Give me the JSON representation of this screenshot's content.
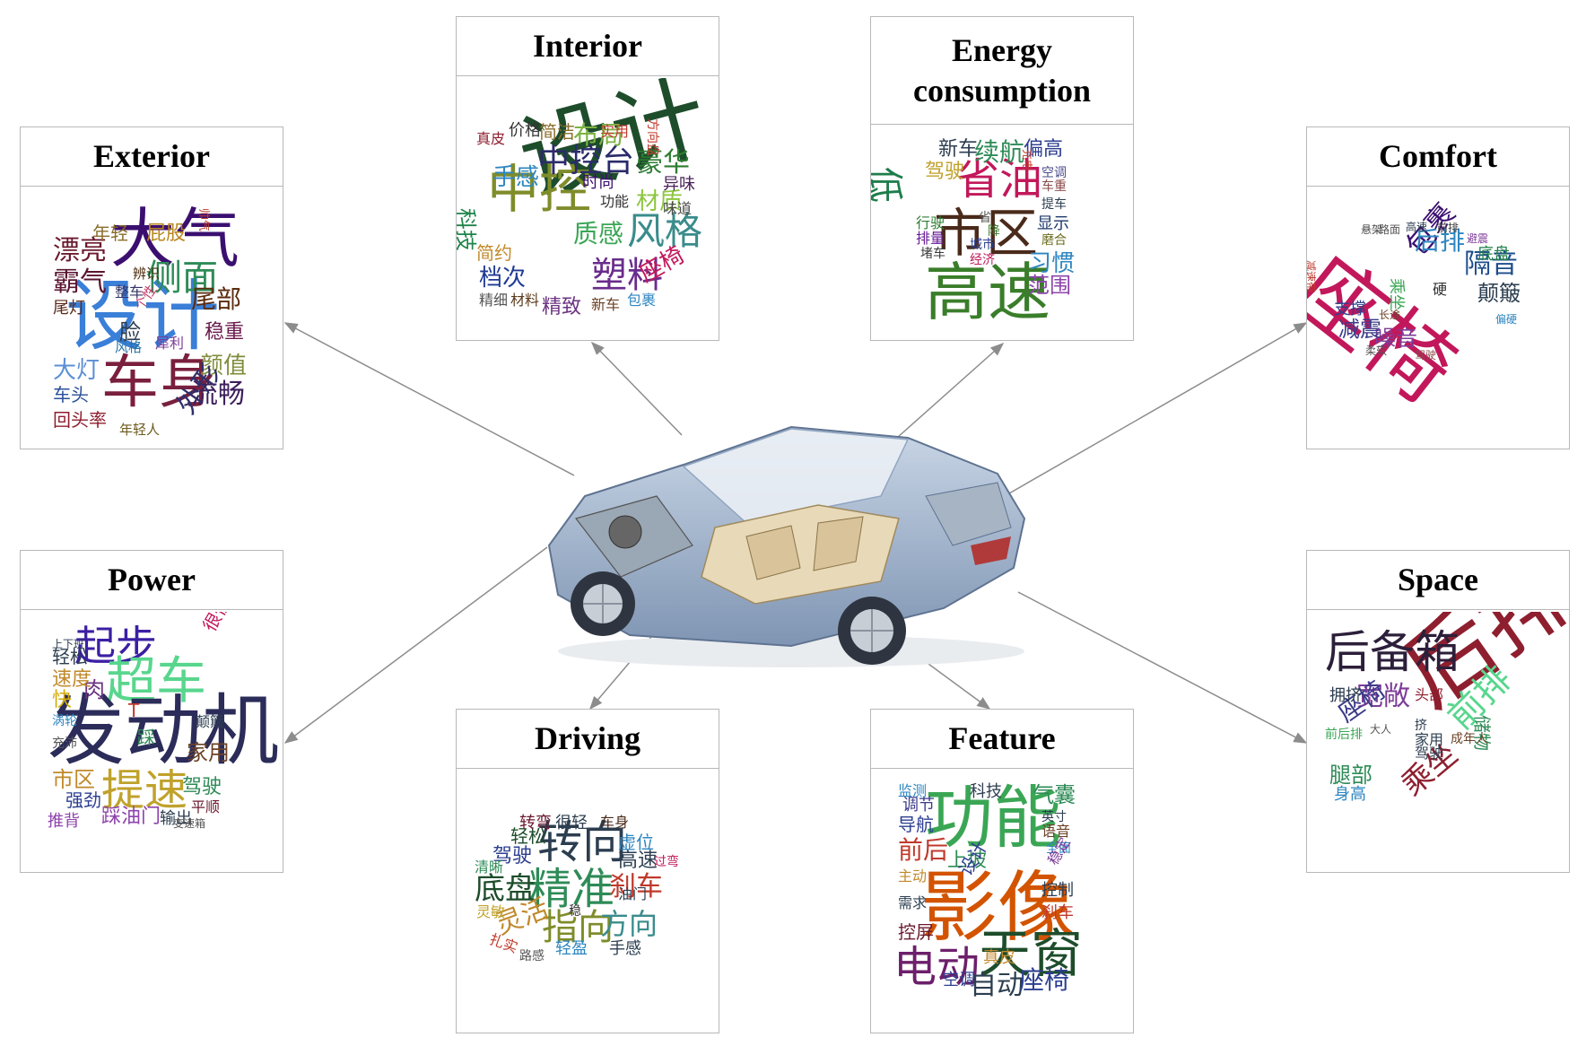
{
  "colors": {
    "arrow": "#8c8c8c",
    "border": "#b8b8b8"
  },
  "center_image": {
    "icon": "car-cutaway-icon"
  },
  "panels": [
    {
      "id": "exterior",
      "title": "Exterior",
      "words": [
        {
          "t": "大气",
          "c": "#3b0f70"
        },
        {
          "t": "设计",
          "c": "#3a7fd8"
        },
        {
          "t": "车身",
          "c": "#7a1f3d"
        },
        {
          "t": "漂亮",
          "c": "#6b1a2e"
        },
        {
          "t": "霸气",
          "c": "#5a1530"
        },
        {
          "t": "年轻",
          "c": "#8a6d2a"
        },
        {
          "t": "屁股",
          "c": "#b8861b"
        },
        {
          "t": "帅气",
          "c": "#c0392b"
        },
        {
          "t": "侧面",
          "c": "#2e8b57"
        },
        {
          "t": "尾部",
          "c": "#5b2c0f"
        },
        {
          "t": "稳重",
          "c": "#6a1b4d"
        },
        {
          "t": "颜值",
          "c": "#7f8c3a"
        },
        {
          "t": "流畅",
          "c": "#3d1f5c"
        },
        {
          "t": "外形",
          "c": "#2f2f6b"
        },
        {
          "t": "大灯",
          "c": "#5b8fd6"
        },
        {
          "t": "车头",
          "c": "#2a4f9a"
        },
        {
          "t": "回头率",
          "c": "#8e1f2f"
        },
        {
          "t": "年轻人",
          "c": "#6d5a1e"
        },
        {
          "t": "尾灯",
          "c": "#5a2a1a"
        },
        {
          "t": "整车",
          "c": "#333366"
        },
        {
          "t": "辨识",
          "c": "#4a2a0a"
        },
        {
          "t": "个性",
          "c": "#c23b6a"
        },
        {
          "t": "脸",
          "c": "#2c3e50"
        },
        {
          "t": "犀利",
          "c": "#7d3c98"
        },
        {
          "t": "风格",
          "c": "#2874a6"
        }
      ]
    },
    {
      "id": "interior",
      "title": "Interior",
      "words": [
        {
          "t": "设计",
          "c": "#1e4d2b"
        },
        {
          "t": "中控",
          "c": "#7f8c2a"
        },
        {
          "t": "中控台",
          "c": "#2b2b6b"
        },
        {
          "t": "风格",
          "c": "#3b8c8c"
        },
        {
          "t": "塑料",
          "c": "#6a2c8c"
        },
        {
          "t": "材质",
          "c": "#8cc63f"
        },
        {
          "t": "豪华",
          "c": "#2e7d32"
        },
        {
          "t": "布局",
          "c": "#7cb342"
        },
        {
          "t": "简洁",
          "c": "#8a6d2a"
        },
        {
          "t": "价格",
          "c": "#333333"
        },
        {
          "t": "真皮",
          "c": "#8e1f2f"
        },
        {
          "t": "实用",
          "c": "#c0392b"
        },
        {
          "t": "方向盘",
          "c": "#c0392b"
        },
        {
          "t": "手感",
          "c": "#2e86c1"
        },
        {
          "t": "时尚",
          "c": "#3b0f70"
        },
        {
          "t": "科技",
          "c": "#1e8449"
        },
        {
          "t": "异味",
          "c": "#4a235a"
        },
        {
          "t": "功能",
          "c": "#333333"
        },
        {
          "t": "味道",
          "c": "#4a4a4a"
        },
        {
          "t": "质感",
          "c": "#3aa655"
        },
        {
          "t": "简约",
          "c": "#c0892b"
        },
        {
          "t": "档次",
          "c": "#1f3a93"
        },
        {
          "t": "精细",
          "c": "#555555"
        },
        {
          "t": "材料",
          "c": "#5a3a1a"
        },
        {
          "t": "精致",
          "c": "#6c3483"
        },
        {
          "t": "新车",
          "c": "#6b4226"
        },
        {
          "t": "包裹",
          "c": "#2e86c1"
        },
        {
          "t": "座椅",
          "c": "#c2185b"
        }
      ]
    },
    {
      "id": "energy",
      "title": "Energy consumption",
      "words": [
        {
          "t": "市区",
          "c": "#4a2a1a"
        },
        {
          "t": "高速",
          "c": "#3a7d2a"
        },
        {
          "t": "省油",
          "c": "#c2185b"
        },
        {
          "t": "低",
          "c": "#1e7d4a"
        },
        {
          "t": "续航",
          "c": "#2e8b57"
        },
        {
          "t": "偏高",
          "c": "#2c3e90"
        },
        {
          "t": "新车",
          "c": "#2c3e50"
        },
        {
          "t": "驾驶",
          "c": "#c0a22b"
        },
        {
          "t": "范围",
          "c": "#8e44ad"
        },
        {
          "t": "习惯",
          "c": "#2e86c1"
        },
        {
          "t": "显示",
          "c": "#1e3a6b"
        },
        {
          "t": "磨合",
          "c": "#6b6b1e"
        },
        {
          "t": "提车",
          "c": "#2c3e50"
        },
        {
          "t": "空调",
          "c": "#4a4a8a"
        },
        {
          "t": "车重",
          "c": "#8a4a4a"
        },
        {
          "t": "充电",
          "c": "#c0392b"
        },
        {
          "t": "行驶",
          "c": "#2e7d32"
        },
        {
          "t": "排量",
          "c": "#6a1b9a"
        },
        {
          "t": "堵车",
          "c": "#3b3b3b"
        },
        {
          "t": "经济",
          "c": "#c2185b"
        },
        {
          "t": "城市",
          "c": "#2c3e90"
        },
        {
          "t": "省",
          "c": "#555555"
        },
        {
          "t": "降",
          "c": "#3a7d2a"
        }
      ]
    },
    {
      "id": "comfort",
      "title": "Comfort",
      "words": [
        {
          "t": "座椅",
          "c": "#c2185b"
        },
        {
          "t": "隔音",
          "c": "#1e4d8c"
        },
        {
          "t": "包裹",
          "c": "#3b0f70"
        },
        {
          "t": "后排",
          "c": "#2e86c1"
        },
        {
          "t": "颠簸",
          "c": "#2c3e50"
        },
        {
          "t": "噪音",
          "c": "#7d3c98"
        },
        {
          "t": "减震",
          "c": "#3b3b8a"
        },
        {
          "t": "支撑",
          "c": "#2c3e90"
        },
        {
          "t": "底盘",
          "c": "#1e7d4a"
        },
        {
          "t": "乘坐",
          "c": "#3aa655"
        },
        {
          "t": "悬架",
          "c": "#4a4a4a"
        },
        {
          "t": "路面",
          "c": "#555555"
        },
        {
          "t": "高速",
          "c": "#2c3e50"
        },
        {
          "t": "前排",
          "c": "#3a3a3a"
        },
        {
          "t": "硬",
          "c": "#333333"
        },
        {
          "t": "柔软",
          "c": "#555555"
        },
        {
          "t": "驾驶",
          "c": "#8a4a4a"
        },
        {
          "t": "长途",
          "c": "#6b4226"
        },
        {
          "t": "减速带",
          "c": "#c0392b"
        },
        {
          "t": "避震",
          "c": "#7d3c98"
        },
        {
          "t": "偏硬",
          "c": "#2e86c1"
        }
      ]
    },
    {
      "id": "power",
      "title": "Power",
      "words": [
        {
          "t": "起步",
          "c": "#3b1fa3"
        },
        {
          "t": "超车",
          "c": "#58d68d"
        },
        {
          "t": "发动机",
          "c": "#2c2c5a"
        },
        {
          "t": "提速",
          "c": "#c0a22b"
        },
        {
          "t": "肉",
          "c": "#6c3483"
        },
        {
          "t": "快",
          "c": "#d4ac0d"
        },
        {
          "t": "很快",
          "c": "#c2185b"
        },
        {
          "t": "轻松",
          "c": "#2c3e50"
        },
        {
          "t": "速度",
          "c": "#c0892b"
        },
        {
          "t": "市区",
          "c": "#c0892b"
        },
        {
          "t": "家用",
          "c": "#6b4226"
        },
        {
          "t": "驾驶",
          "c": "#2e8b57"
        },
        {
          "t": "强劲",
          "c": "#2c3e90"
        },
        {
          "t": "推背",
          "c": "#8e44ad"
        },
        {
          "t": "踩油门",
          "c": "#8e44ad"
        },
        {
          "t": "输出",
          "c": "#2c3e50"
        },
        {
          "t": "平顺",
          "c": "#6b1a2e"
        },
        {
          "t": "颠簸",
          "c": "#2c3e50"
        },
        {
          "t": "T",
          "c": "#c0392b"
        },
        {
          "t": "踩",
          "c": "#2e8b57"
        },
        {
          "t": "涡轮",
          "c": "#2e86c1"
        },
        {
          "t": "充沛",
          "c": "#555555"
        },
        {
          "t": "上下班",
          "c": "#2c3e50"
        },
        {
          "t": "变速箱",
          "c": "#555555"
        }
      ]
    },
    {
      "id": "driving",
      "title": "Driving",
      "words": [
        {
          "t": "转向",
          "c": "#2c3e50"
        },
        {
          "t": "精准",
          "c": "#2e8b57"
        },
        {
          "t": "底盘",
          "c": "#1e4d2b"
        },
        {
          "t": "指向",
          "c": "#7f8c2a"
        },
        {
          "t": "方向",
          "c": "#3b8c8c"
        },
        {
          "t": "灵活",
          "c": "#c0892b"
        },
        {
          "t": "刹车",
          "c": "#c0392b"
        },
        {
          "t": "高速",
          "c": "#2c3e50"
        },
        {
          "t": "驾驶",
          "c": "#2c3e90"
        },
        {
          "t": "轻松",
          "c": "#1e4d2b"
        },
        {
          "t": "虚位",
          "c": "#2e86c1"
        },
        {
          "t": "很轻",
          "c": "#2c3e50"
        },
        {
          "t": "转弯",
          "c": "#6b1a2e"
        },
        {
          "t": "车身",
          "c": "#4a2a1a"
        },
        {
          "t": "手感",
          "c": "#2c3e50"
        },
        {
          "t": "轻盈",
          "c": "#2e86c1"
        },
        {
          "t": "路感",
          "c": "#555555"
        },
        {
          "t": "清晰",
          "c": "#2e8b57"
        },
        {
          "t": "油门",
          "c": "#2c3e50"
        },
        {
          "t": "过弯",
          "c": "#c2185b"
        },
        {
          "t": "扎实",
          "c": "#c0392b"
        },
        {
          "t": "灵敏",
          "c": "#c0a22b"
        },
        {
          "t": "稳",
          "c": "#333333"
        }
      ]
    },
    {
      "id": "feature",
      "title": "Feature",
      "words": [
        {
          "t": "功能",
          "c": "#3aa655"
        },
        {
          "t": "影像",
          "c": "#d35400"
        },
        {
          "t": "天窗",
          "c": "#1e4d2b"
        },
        {
          "t": "电动",
          "c": "#6c1f6b"
        },
        {
          "t": "自动",
          "c": "#2c3e50"
        },
        {
          "t": "座椅",
          "c": "#2c3e90"
        },
        {
          "t": "前后",
          "c": "#c0392b"
        },
        {
          "t": "导航",
          "c": "#2c3e90"
        },
        {
          "t": "调节",
          "c": "#3b3b8a"
        },
        {
          "t": "气囊",
          "c": "#2e8b57"
        },
        {
          "t": "监测",
          "c": "#2e86c1"
        },
        {
          "t": "科技",
          "c": "#2c3e50"
        },
        {
          "t": "上坡",
          "c": "#2e8b57"
        },
        {
          "t": "设计",
          "c": "#2c3e90"
        },
        {
          "t": "控制",
          "c": "#2c3e50"
        },
        {
          "t": "刹车",
          "c": "#c0392b"
        },
        {
          "t": "语音",
          "c": "#6b4226"
        },
        {
          "t": "全面",
          "c": "#2e86c1"
        },
        {
          "t": "空调",
          "c": "#2c3e90"
        },
        {
          "t": "真皮",
          "c": "#c0892b"
        },
        {
          "t": "控屏",
          "c": "#6b1a2e"
        },
        {
          "t": "英寸",
          "c": "#2c3e50"
        },
        {
          "t": "稳定",
          "c": "#7d3c98"
        },
        {
          "t": "主动",
          "c": "#c0892b"
        },
        {
          "t": "需求",
          "c": "#2c3e50"
        }
      ]
    },
    {
      "id": "space",
      "title": "Space",
      "words": [
        {
          "t": "后排",
          "c": "#8e1f2f"
        },
        {
          "t": "后备箱",
          "c": "#2c1f3a"
        },
        {
          "t": "前排",
          "c": "#58d68d"
        },
        {
          "t": "乘坐",
          "c": "#8e1f2f"
        },
        {
          "t": "宽敞",
          "c": "#7d3c98"
        },
        {
          "t": "座椅",
          "c": "#3b3b8a"
        },
        {
          "t": "腿部",
          "c": "#2e8b57"
        },
        {
          "t": "拥挤",
          "c": "#2c3e50"
        },
        {
          "t": "储物",
          "c": "#2e8b57"
        },
        {
          "t": "头部",
          "c": "#8e1f2f"
        },
        {
          "t": "身高",
          "c": "#2e86c1"
        },
        {
          "t": "家用",
          "c": "#2c3e50"
        },
        {
          "t": "驾驶",
          "c": "#2c3e50"
        },
        {
          "t": "前后排",
          "c": "#3aa655"
        },
        {
          "t": "成年人",
          "c": "#6b4226"
        },
        {
          "t": "挤",
          "c": "#2c3e50"
        },
        {
          "t": "大人",
          "c": "#555555"
        }
      ]
    }
  ]
}
